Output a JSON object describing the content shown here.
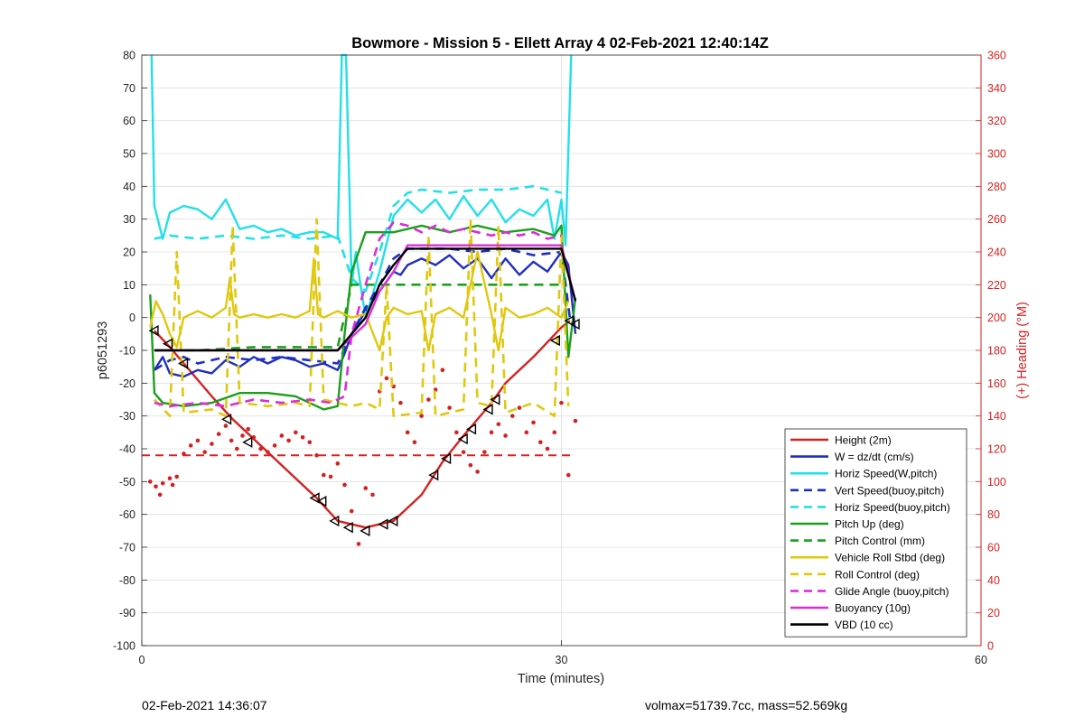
{
  "footer": {
    "timestamp": "02-Feb-2021 14:36:07",
    "stats": "volmax=51739.7cc, mass=52.569kg"
  },
  "chart_data": {
    "type": "line",
    "title": "Bowmore - Mission 5 - Ellett Array 4 02-Feb-2021 12:40:14Z",
    "xlabel": "Time (minutes)",
    "ylabel": "p6051293",
    "y2label": "(+) Heading (°M)",
    "xlim": [
      0,
      60
    ],
    "ylim": [
      -100,
      80
    ],
    "y2lim": [
      0,
      360
    ],
    "xticks": [
      0,
      30,
      60
    ],
    "yticks": [
      80,
      70,
      60,
      50,
      40,
      30,
      20,
      10,
      0,
      -10,
      -20,
      -30,
      -40,
      -50,
      -60,
      -70,
      -80,
      -90,
      -100
    ],
    "y2ticks": [
      360,
      340,
      320,
      300,
      280,
      260,
      240,
      220,
      200,
      180,
      160,
      140,
      120,
      100,
      80,
      60,
      40,
      20,
      0
    ],
    "grid": true,
    "legend_position": "lower-right",
    "series": [
      {
        "name": "Height (2m)",
        "color": "#d62020",
        "style": "solid",
        "x": [
          0.9,
          2,
          3,
          5,
          6.5,
          8,
          10,
          12.5,
          14,
          16,
          18,
          20,
          21.5,
          23,
          25,
          26,
          28,
          30,
          30.6
        ],
        "y": [
          -4,
          -9,
          -14,
          -24,
          -31,
          -37,
          -45,
          -55,
          -62,
          -64,
          -62,
          -54,
          -44,
          -36,
          -26,
          -20,
          -12,
          -3,
          -1
        ]
      },
      {
        "name": "W = dz/dt (cm/s)",
        "color": "#1f2fbf",
        "style": "solid",
        "x": [
          0.9,
          1.5,
          2,
          3,
          4,
          5,
          6,
          7,
          8,
          9,
          10,
          11,
          12,
          13,
          14,
          14.5,
          15,
          16,
          17,
          18,
          18.5,
          19,
          20,
          21,
          22,
          23,
          24,
          25,
          26,
          27,
          28,
          29,
          30,
          30.5,
          31
        ],
        "y": [
          -16,
          -12,
          -17,
          -18,
          -16,
          -17,
          -13,
          -15,
          -12,
          -14,
          -12,
          -13,
          -15,
          -14,
          -16,
          -11,
          -5,
          2,
          8,
          14,
          13,
          16,
          18,
          16,
          19,
          15,
          18,
          12,
          18,
          13,
          17,
          14,
          20,
          16,
          -5
        ]
      },
      {
        "name": "Horiz Speed(W,pitch)",
        "color": "#22e0e8",
        "style": "solid",
        "x": [
          0.7,
          0.9,
          1.5,
          2,
          3,
          4,
          5,
          6,
          7,
          8,
          9,
          10,
          11,
          12,
          13,
          14,
          14.3,
          14.6,
          15,
          15.3,
          15.6,
          16,
          17,
          18,
          19,
          20,
          21,
          22,
          23,
          24,
          25,
          26,
          27,
          28,
          29,
          29.5,
          30,
          30.3,
          30.7
        ],
        "y": [
          80,
          34,
          24,
          32,
          34,
          33,
          30,
          36,
          27,
          28,
          26,
          27,
          25,
          26,
          26,
          24,
          80,
          80,
          10,
          20,
          11,
          0,
          14,
          31,
          36,
          32,
          36,
          30,
          37,
          31,
          36,
          29,
          33,
          31,
          36,
          24,
          36,
          22,
          80
        ]
      },
      {
        "name": "Vert Speed(buoy,pitch)",
        "color": "#1f2fbf",
        "style": "dashed",
        "x": [
          0.9,
          2,
          3,
          4,
          5,
          6,
          8,
          10,
          12,
          14,
          15,
          16,
          17,
          18,
          19,
          20,
          22,
          24,
          26,
          28,
          30,
          30.6
        ],
        "y": [
          -16,
          -13,
          -12,
          -14,
          -13,
          -12,
          -13,
          -12,
          -13,
          -14,
          -5,
          3,
          10,
          18,
          21,
          21,
          21,
          20,
          21,
          19,
          20,
          0
        ]
      },
      {
        "name": "Horiz Speed(buoy,pitch)",
        "color": "#22e0e8",
        "style": "dashed",
        "x": [
          0.9,
          2,
          4,
          6,
          8,
          10,
          12,
          14,
          15,
          16,
          17,
          18,
          19,
          20,
          22,
          24,
          26,
          28,
          30
        ],
        "y": [
          24,
          25,
          24,
          25,
          24,
          25,
          24,
          25,
          12,
          8,
          20,
          34,
          38,
          39,
          38,
          39,
          39,
          40,
          38
        ]
      },
      {
        "name": "Pitch Up (deg)",
        "color": "#1aa01a",
        "style": "solid",
        "x": [
          0.6,
          0.9,
          1.5,
          3,
          5,
          7,
          9,
          11,
          13,
          14,
          14.5,
          15,
          16,
          18,
          20,
          22,
          24,
          26,
          28,
          29.5,
          30,
          30.5,
          31
        ],
        "y": [
          7,
          -23,
          -26,
          -27,
          -26,
          -23,
          -23,
          -24,
          -28,
          -27,
          -5,
          14,
          26,
          26,
          28,
          26,
          28,
          26,
          27,
          25,
          28,
          -12,
          6
        ]
      },
      {
        "name": "Pitch Control (mm)",
        "color": "#1aa01a",
        "style": "dashed",
        "x": [
          0.9,
          4,
          8,
          12,
          14,
          15,
          16,
          20,
          25,
          30
        ],
        "y": [
          -10,
          -10,
          -9,
          -9,
          -9,
          10,
          10,
          10,
          10,
          10
        ]
      },
      {
        "name": "Vehicle Roll Stbd (deg)",
        "color": "#e0c80e",
        "style": "solid",
        "x": [
          0.6,
          1,
          1.5,
          2,
          2.5,
          3,
          4,
          5,
          6,
          6.3,
          6.6,
          7,
          8,
          9,
          10,
          11,
          12,
          12.3,
          12.6,
          13,
          14,
          15,
          16,
          17,
          17.5,
          18,
          19,
          20,
          20.5,
          21,
          22,
          23,
          24,
          25,
          25.5,
          26,
          27,
          28,
          29,
          30,
          30.5
        ],
        "y": [
          -3,
          5,
          1,
          -5,
          -9,
          0,
          2,
          0,
          3,
          12,
          1,
          0,
          1,
          0,
          1,
          0,
          2,
          18,
          1,
          0,
          2,
          0,
          1,
          -10,
          0,
          3,
          1,
          2,
          -10,
          1,
          3,
          0,
          20,
          1,
          -10,
          3,
          0,
          1,
          3,
          0,
          5
        ]
      },
      {
        "name": "Roll Control (deg)",
        "color": "#e0c80e",
        "style": "dashed",
        "x": [
          0.9,
          2,
          2.5,
          3,
          5,
          6,
          6.5,
          7,
          9,
          11,
          12,
          12.5,
          13,
          15,
          16,
          17,
          17.5,
          18,
          20,
          20.5,
          21,
          23,
          23.5,
          24,
          25,
          25.5,
          26,
          28,
          29.5,
          30,
          30.5
        ],
        "y": [
          -25,
          -30,
          20,
          -29,
          -28,
          -30,
          28,
          -26,
          -27,
          -26,
          -27,
          30,
          -25,
          -27,
          -26,
          -28,
          10,
          -30,
          -29,
          25,
          -30,
          -28,
          30,
          -26,
          -27,
          28,
          -29,
          -26,
          -30,
          25,
          -27
        ]
      },
      {
        "name": "Glide Angle (buoy,pitch)",
        "color": "#d82ed8",
        "style": "dashed",
        "x": [
          0.9,
          2,
          4,
          6,
          8,
          10,
          12,
          13.5,
          14.5,
          15,
          16,
          17,
          18,
          19,
          20,
          21,
          22,
          23,
          24,
          25,
          26,
          27,
          28,
          29,
          30
        ],
        "y": [
          -26,
          -27,
          -26,
          -27,
          -25,
          -26,
          -25,
          -26,
          -24,
          -5,
          10,
          24,
          29,
          28,
          26,
          28,
          26,
          27,
          26,
          25,
          26,
          25,
          26,
          24,
          25
        ]
      },
      {
        "name": "Buoyancy (10g)",
        "color": "#d82ed8",
        "style": "solid",
        "x": [
          0.9,
          14,
          16,
          17,
          18,
          19,
          30,
          31
        ],
        "y": [
          -10,
          -10,
          -2,
          8,
          14,
          22,
          22,
          5
        ]
      },
      {
        "name": "VBD (10 cc)",
        "color": "#000000",
        "style": "solid",
        "x": [
          0.9,
          14,
          16,
          17,
          18,
          19,
          30,
          31
        ],
        "y": [
          -10,
          -10,
          0,
          10,
          16,
          21,
          21,
          5
        ]
      }
    ],
    "overlays": {
      "heading_scatter": {
        "color": "#d62020",
        "axis": "y2",
        "points": [
          [
            0.6,
            100
          ],
          [
            1,
            97
          ],
          [
            1.3,
            92
          ],
          [
            1.5,
            99
          ],
          [
            2,
            102
          ],
          [
            2.2,
            98
          ],
          [
            2.5,
            103
          ],
          [
            3,
            117
          ],
          [
            3.5,
            122
          ],
          [
            4,
            125
          ],
          [
            4.5,
            118
          ],
          [
            5,
            123
          ],
          [
            5.5,
            129
          ],
          [
            6,
            134
          ],
          [
            6.4,
            125
          ],
          [
            6.8,
            120
          ],
          [
            7.2,
            128
          ],
          [
            7.6,
            132
          ],
          [
            8,
            127
          ],
          [
            8.5,
            120
          ],
          [
            9,
            118
          ],
          [
            9.5,
            122
          ],
          [
            10,
            128
          ],
          [
            10.5,
            125
          ],
          [
            11,
            130
          ],
          [
            11.5,
            127
          ],
          [
            12,
            124
          ],
          [
            12.5,
            116
          ],
          [
            13,
            104
          ],
          [
            13.5,
            103
          ],
          [
            14,
            111
          ],
          [
            14.5,
            98
          ],
          [
            15,
            82
          ],
          [
            15.5,
            62
          ],
          [
            16,
            96
          ],
          [
            16.5,
            92
          ],
          [
            17,
            155
          ],
          [
            17.5,
            163
          ],
          [
            18,
            158
          ],
          [
            18.5,
            148
          ],
          [
            19,
            130
          ],
          [
            19.5,
            124
          ],
          [
            20,
            140
          ],
          [
            20.5,
            150
          ],
          [
            21,
            156
          ],
          [
            21.5,
            168
          ],
          [
            22,
            145
          ],
          [
            22.5,
            130
          ],
          [
            23,
            118
          ],
          [
            23.5,
            110
          ],
          [
            24,
            106
          ],
          [
            24.5,
            118
          ],
          [
            25,
            130
          ],
          [
            25.5,
            135
          ],
          [
            26,
            128
          ],
          [
            26.5,
            140
          ],
          [
            27,
            145
          ],
          [
            27.5,
            130
          ],
          [
            28,
            136
          ],
          [
            28.5,
            124
          ],
          [
            29,
            120
          ],
          [
            29.5,
            130
          ],
          [
            30,
            148
          ],
          [
            30.5,
            104
          ],
          [
            31,
            137
          ]
        ]
      },
      "reference_line": {
        "color": "#d62020",
        "style": "dashed",
        "axis": "y2",
        "y": 116,
        "x": [
          0,
          31
        ]
      },
      "triangle_markers": {
        "color": "#000000",
        "points": [
          [
            0.9,
            -4
          ],
          [
            1.9,
            -8
          ],
          [
            3.0,
            -14
          ],
          [
            6.1,
            -31
          ],
          [
            7.6,
            -38
          ],
          [
            12.4,
            -55
          ],
          [
            12.9,
            -56
          ],
          [
            13.8,
            -62
          ],
          [
            14.8,
            -64
          ],
          [
            16.0,
            -65
          ],
          [
            17.3,
            -63
          ],
          [
            18.0,
            -62
          ],
          [
            20.9,
            -48
          ],
          [
            21.8,
            -43
          ],
          [
            23.0,
            -37
          ],
          [
            23.6,
            -34
          ],
          [
            24.8,
            -28
          ],
          [
            25.3,
            -25
          ],
          [
            29.6,
            -7
          ],
          [
            30.6,
            -1
          ],
          [
            31.0,
            -2
          ]
        ]
      }
    }
  }
}
